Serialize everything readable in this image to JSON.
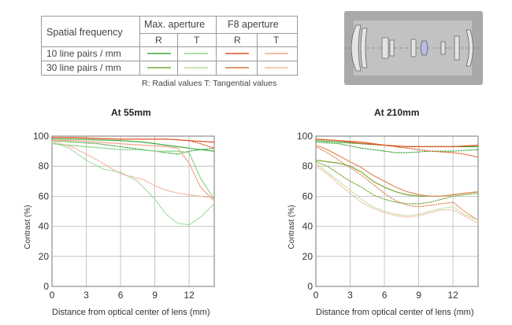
{
  "legend": {
    "spatial_frequency": "Spatial frequency",
    "max_aperture": "Max. aperture",
    "f8_aperture": "F8 aperture",
    "r": "R",
    "t": "T",
    "row1": "10 line pairs / mm",
    "row2": "30 line pairs / mm",
    "note": "R: Radial values  T: Tangential values",
    "colors": {
      "max_r_10": "#3da83d",
      "max_t_10": "#8fd48f",
      "f8_r_10": "#e0561e",
      "f8_t_10": "#f2a58a",
      "max_r_30": "#7aa83a",
      "max_t_30": "#b8dc9a",
      "f8_r_30": "#d9773f",
      "f8_t_30": "#f0b898"
    },
    "diagram_icon": "lens-element-diagram"
  },
  "chart_data": [
    {
      "type": "line",
      "title": "At 55mm",
      "xlabel": "Distance from optical center of lens (mm)",
      "ylabel": "Contrast (%)",
      "xlim": [
        0,
        14.2
      ],
      "ylim": [
        0,
        100
      ],
      "xticks": [
        0,
        3,
        6,
        9,
        12
      ],
      "yticks": [
        0,
        20,
        40,
        60,
        80,
        100
      ],
      "grid": true,
      "series": [
        {
          "key": "max_r_10",
          "style": "solid",
          "color": "#3da83d",
          "x": [
            0,
            2,
            4,
            6,
            8,
            10,
            11,
            12,
            13,
            14.2
          ],
          "y": [
            98,
            98,
            97.5,
            97,
            96,
            94,
            93,
            92,
            91,
            90
          ]
        },
        {
          "key": "max_t_10",
          "style": "dotted",
          "color": "#3da83d",
          "x": [
            0,
            2,
            4,
            6,
            8,
            10,
            11,
            12,
            13,
            14.2
          ],
          "y": [
            97,
            96,
            95,
            93,
            91,
            89,
            88,
            90,
            91,
            92
          ]
        },
        {
          "key": "f8_r_10",
          "style": "solid",
          "color": "#e0561e",
          "x": [
            0,
            2,
            4,
            6,
            8,
            10,
            12,
            14.2
          ],
          "y": [
            99,
            99,
            98.5,
            98,
            98,
            98,
            97,
            96
          ]
        },
        {
          "key": "f8_t_10",
          "style": "dotted",
          "color": "#e0561e",
          "x": [
            0,
            2,
            4,
            6,
            8,
            10,
            12,
            13,
            14.2
          ],
          "y": [
            99,
            99,
            98.5,
            98,
            98,
            98,
            97,
            95,
            92
          ]
        },
        {
          "key": "max_r_30",
          "style": "solid",
          "color": "#8fd48f",
          "x": [
            0,
            1.5,
            3,
            4.5,
            6,
            7.5,
            9,
            10,
            11,
            12,
            13,
            14.2
          ],
          "y": [
            95,
            94,
            93,
            92,
            91,
            91,
            90,
            90,
            90,
            89,
            72,
            58
          ]
        },
        {
          "key": "max_t_30",
          "style": "dotted",
          "color": "#8fd48f",
          "x": [
            0,
            1.5,
            3,
            4.5,
            6,
            7.5,
            9,
            10,
            11,
            12,
            13,
            14.2
          ],
          "y": [
            96,
            92,
            84,
            78,
            76,
            70,
            58,
            48,
            42,
            41,
            46,
            55
          ]
        },
        {
          "key": "f8_r_30",
          "style": "solid",
          "color": "#f2a58a",
          "x": [
            0,
            2,
            4,
            6,
            8,
            10,
            11,
            12,
            13,
            14.2
          ],
          "y": [
            97,
            97,
            96,
            95,
            94,
            93,
            92,
            82,
            66,
            57
          ]
        },
        {
          "key": "f8_t_30",
          "style": "dotted",
          "color": "#f2a58a",
          "x": [
            0,
            2,
            4,
            6,
            7,
            8,
            9,
            10,
            11,
            12,
            13,
            14.2
          ],
          "y": [
            97,
            92,
            84,
            75,
            73,
            71,
            67,
            64,
            62,
            61,
            60,
            59
          ]
        }
      ]
    },
    {
      "type": "line",
      "title": "At 210mm",
      "xlabel": "Distance from optical center of lens (mm)",
      "ylabel": "Contrast (%)",
      "xlim": [
        0,
        14.2
      ],
      "ylim": [
        0,
        100
      ],
      "xticks": [
        0,
        3,
        6,
        9,
        12
      ],
      "yticks": [
        0,
        20,
        40,
        60,
        80,
        100
      ],
      "grid": true,
      "series": [
        {
          "key": "max_r_10",
          "style": "solid",
          "color": "#3da83d",
          "x": [
            0,
            2,
            4,
            6,
            8,
            10,
            12,
            14.2
          ],
          "y": [
            97,
            96,
            95,
            94,
            93,
            93,
            93,
            93
          ]
        },
        {
          "key": "max_t_10",
          "style": "dotted",
          "color": "#3da83d",
          "x": [
            0,
            2,
            4,
            6,
            7,
            8,
            10,
            12,
            14.2
          ],
          "y": [
            96,
            95,
            92,
            90,
            89,
            89,
            90,
            90,
            91
          ]
        },
        {
          "key": "f8_r_10",
          "style": "solid",
          "color": "#e0561e",
          "x": [
            0,
            2,
            4,
            6,
            8,
            10,
            12,
            14.2
          ],
          "y": [
            98,
            97,
            96,
            94,
            93,
            93,
            93,
            94
          ]
        },
        {
          "key": "f8_t_10",
          "style": "dotted",
          "color": "#e0561e",
          "x": [
            0,
            2,
            4,
            6,
            8,
            10,
            12,
            13,
            14.2
          ],
          "y": [
            98,
            97,
            95,
            94,
            92,
            90,
            89,
            88,
            86
          ]
        },
        {
          "key": "max_r_30",
          "style": "solid",
          "color": "#7aa83a",
          "x": [
            0,
            1,
            2,
            3,
            4,
            5,
            6,
            7,
            8,
            9,
            10,
            11,
            12,
            13,
            14.2
          ],
          "y": [
            84,
            83,
            82,
            80,
            76,
            70,
            66,
            63,
            61,
            60,
            60,
            60,
            61,
            62,
            63
          ]
        },
        {
          "key": "max_t_30",
          "style": "dotted",
          "color": "#7aa83a",
          "x": [
            0,
            1,
            2,
            3,
            4,
            5,
            6,
            7,
            8,
            9,
            10,
            11,
            12,
            13,
            14.2
          ],
          "y": [
            83,
            80,
            75,
            70,
            66,
            61,
            58,
            56,
            55,
            55,
            56,
            58,
            60,
            61,
            62
          ]
        },
        {
          "key": "f8_r_30",
          "style": "solid",
          "color": "#e08a5a",
          "x": [
            0,
            1,
            2,
            3,
            4,
            5,
            6,
            7,
            8,
            9,
            10,
            11,
            12,
            13,
            14.2
          ],
          "y": [
            94,
            91,
            87,
            83,
            79,
            74,
            70,
            66,
            63,
            61,
            60,
            60,
            61,
            62,
            63
          ]
        },
        {
          "key": "f8_t_30",
          "style": "dotted",
          "color": "#e08a5a",
          "x": [
            0,
            1,
            2,
            3,
            4,
            5,
            6,
            7,
            8,
            9,
            10,
            11,
            12,
            13,
            14.2
          ],
          "y": [
            93,
            89,
            84,
            79,
            74,
            68,
            62,
            57,
            54,
            53,
            54,
            55,
            56,
            50,
            44
          ]
        },
        {
          "key": "max_t_30b",
          "style": "dotted",
          "color": "#b8dc9a",
          "x": [
            0,
            1,
            2,
            3,
            4,
            5,
            6,
            7,
            8,
            9,
            10,
            11,
            12,
            13,
            14.2
          ],
          "y": [
            82,
            76,
            70,
            64,
            58,
            53,
            50,
            48,
            47,
            48,
            50,
            52,
            53,
            48,
            44
          ]
        },
        {
          "key": "f8_t_30b",
          "style": "dotted",
          "color": "#f0b898",
          "x": [
            0,
            1,
            2,
            3,
            4,
            5,
            6,
            7,
            8,
            9,
            10,
            11,
            12,
            13,
            14.2
          ],
          "y": [
            80,
            75,
            68,
            62,
            56,
            52,
            49,
            47,
            46,
            47,
            49,
            51,
            51,
            47,
            42
          ]
        }
      ]
    }
  ]
}
